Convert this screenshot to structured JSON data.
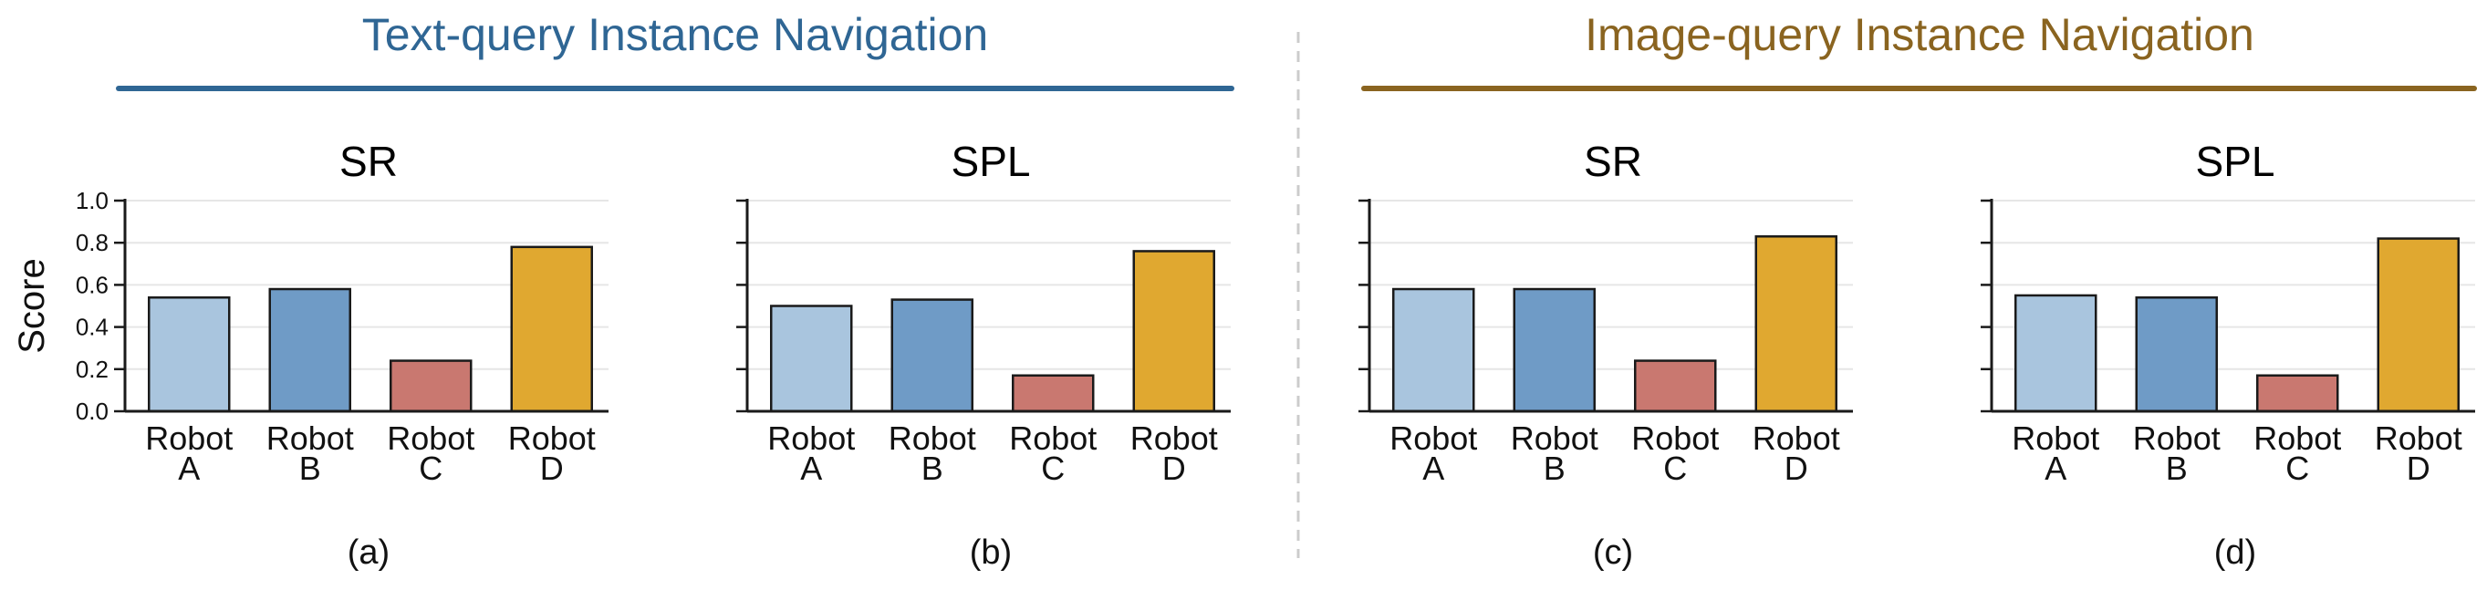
{
  "groups": [
    {
      "title": "Text-query Instance Navigation",
      "color": "#2f6694"
    },
    {
      "title": "Image-query Instance Navigation",
      "color": "#8a6420"
    }
  ],
  "colors": {
    "robot_a": "#a9c5de",
    "robot_b": "#6f9bc6",
    "robot_c": "#c97870",
    "robot_d": "#e0a830",
    "bar_edge": "#1a1a1a",
    "grid": "#e6e6e6",
    "divider": "#cccccc"
  },
  "chart_data": [
    {
      "type": "bar",
      "title": "SR",
      "panel": "(a)",
      "group": 0,
      "categories": [
        "Robot\nA",
        "Robot\nB",
        "Robot\nC",
        "Robot\nD"
      ],
      "values": [
        0.54,
        0.58,
        0.24,
        0.78
      ],
      "ylabel": "Score",
      "ylim": [
        0,
        1.0
      ],
      "yticks": [
        "0.0",
        "0.2",
        "0.4",
        "0.6",
        "0.8",
        "1.0"
      ],
      "grid": true
    },
    {
      "type": "bar",
      "title": "SPL",
      "panel": "(b)",
      "group": 0,
      "categories": [
        "Robot\nA",
        "Robot\nB",
        "Robot\nC",
        "Robot\nD"
      ],
      "values": [
        0.5,
        0.53,
        0.17,
        0.76
      ],
      "ylabel": "",
      "ylim": [
        0,
        1.0
      ],
      "yticks": [],
      "grid": true
    },
    {
      "type": "bar",
      "title": "SR",
      "panel": "(c)",
      "group": 1,
      "categories": [
        "Robot\nA",
        "Robot\nB",
        "Robot\nC",
        "Robot\nD"
      ],
      "values": [
        0.58,
        0.58,
        0.24,
        0.83
      ],
      "ylabel": "",
      "ylim": [
        0,
        1.0
      ],
      "yticks": [],
      "grid": true
    },
    {
      "type": "bar",
      "title": "SPL",
      "panel": "(d)",
      "group": 1,
      "categories": [
        "Robot\nA",
        "Robot\nB",
        "Robot\nC",
        "Robot\nD"
      ],
      "values": [
        0.55,
        0.54,
        0.17,
        0.82
      ],
      "ylabel": "",
      "ylim": [
        0,
        1.0
      ],
      "yticks": [],
      "grid": true
    }
  ]
}
